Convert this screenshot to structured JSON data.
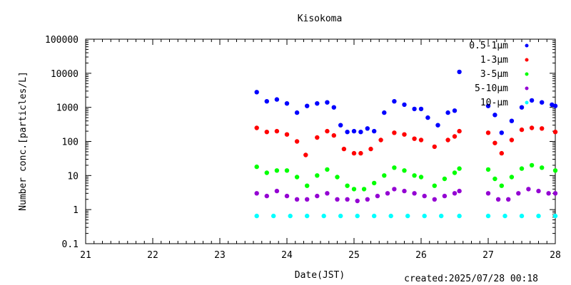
{
  "footer": {
    "created": "created:2025/07/28 00:18"
  },
  "colors": {
    "s0": "#0000ff",
    "s1": "#ff0000",
    "s2": "#00ff00",
    "s3": "#9400d3",
    "s4": "#00ffff"
  },
  "chart_data": {
    "type": "scatter",
    "title": "Kisokoma",
    "xlabel": "Date(JST)",
    "ylabel": "Number conc.[particles/L]",
    "xlim": [
      21,
      28
    ],
    "ylim": [
      0.1,
      100000
    ],
    "yscale": "log",
    "grid": false,
    "legend_position": "top-right",
    "xticks": [
      "21",
      "22",
      "23",
      "24",
      "25",
      "26",
      "27",
      "28"
    ],
    "yticks": [
      "0.1",
      "1",
      "10",
      "100",
      "1000",
      "10000",
      "100000"
    ],
    "series": [
      {
        "name": "0.5-1μm",
        "color": "#0000ff",
        "points": [
          [
            23.55,
            2800
          ],
          [
            23.7,
            1500
          ],
          [
            23.85,
            1700
          ],
          [
            24.0,
            1300
          ],
          [
            24.15,
            700
          ],
          [
            24.3,
            1100
          ],
          [
            24.45,
            1300
          ],
          [
            24.6,
            1400
          ],
          [
            24.7,
            1000
          ],
          [
            24.8,
            300
          ],
          [
            24.9,
            190
          ],
          [
            25.0,
            200
          ],
          [
            25.1,
            190
          ],
          [
            25.2,
            240
          ],
          [
            25.3,
            200
          ],
          [
            25.45,
            700
          ],
          [
            25.6,
            1500
          ],
          [
            25.75,
            1200
          ],
          [
            25.9,
            900
          ],
          [
            26.0,
            900
          ],
          [
            26.1,
            500
          ],
          [
            26.25,
            300
          ],
          [
            26.4,
            700
          ],
          [
            26.5,
            800
          ],
          [
            26.57,
            11000
          ],
          [
            27.0,
            1100
          ],
          [
            27.1,
            600
          ],
          [
            27.2,
            180
          ],
          [
            27.35,
            400
          ],
          [
            27.5,
            1000
          ],
          [
            27.65,
            1600
          ],
          [
            27.8,
            1400
          ],
          [
            27.95,
            1200
          ],
          [
            28.0,
            1100
          ]
        ]
      },
      {
        "name": "1-3μm",
        "color": "#ff0000",
        "points": [
          [
            23.55,
            250
          ],
          [
            23.7,
            190
          ],
          [
            23.85,
            200
          ],
          [
            24.0,
            160
          ],
          [
            24.15,
            100
          ],
          [
            24.28,
            40
          ],
          [
            24.45,
            130
          ],
          [
            24.6,
            200
          ],
          [
            24.7,
            150
          ],
          [
            24.85,
            60
          ],
          [
            25.0,
            45
          ],
          [
            25.1,
            45
          ],
          [
            25.25,
            60
          ],
          [
            25.4,
            110
          ],
          [
            25.6,
            180
          ],
          [
            25.75,
            160
          ],
          [
            25.9,
            120
          ],
          [
            26.0,
            110
          ],
          [
            26.2,
            70
          ],
          [
            26.4,
            110
          ],
          [
            26.5,
            140
          ],
          [
            26.57,
            200
          ],
          [
            27.0,
            180
          ],
          [
            27.1,
            90
          ],
          [
            27.2,
            45
          ],
          [
            27.35,
            110
          ],
          [
            27.5,
            220
          ],
          [
            27.65,
            250
          ],
          [
            27.8,
            240
          ],
          [
            28.0,
            190
          ]
        ]
      },
      {
        "name": "3-5μm",
        "color": "#00ff00",
        "points": [
          [
            23.55,
            18
          ],
          [
            23.7,
            12
          ],
          [
            23.85,
            14
          ],
          [
            24.0,
            14
          ],
          [
            24.15,
            9
          ],
          [
            24.3,
            5
          ],
          [
            24.45,
            10
          ],
          [
            24.6,
            15
          ],
          [
            24.75,
            9
          ],
          [
            24.9,
            5
          ],
          [
            25.0,
            4
          ],
          [
            25.15,
            4
          ],
          [
            25.3,
            6
          ],
          [
            25.45,
            10
          ],
          [
            25.6,
            17
          ],
          [
            25.75,
            14
          ],
          [
            25.9,
            10
          ],
          [
            26.0,
            9
          ],
          [
            26.2,
            5
          ],
          [
            26.35,
            8
          ],
          [
            26.5,
            12
          ],
          [
            26.57,
            16
          ],
          [
            27.0,
            15
          ],
          [
            27.1,
            8
          ],
          [
            27.2,
            5
          ],
          [
            27.35,
            9
          ],
          [
            27.5,
            16
          ],
          [
            27.65,
            20
          ],
          [
            27.8,
            17
          ],
          [
            28.0,
            14
          ]
        ]
      },
      {
        "name": "5-10μm",
        "color": "#9400d3",
        "points": [
          [
            23.55,
            3
          ],
          [
            23.7,
            2.5
          ],
          [
            23.85,
            3.5
          ],
          [
            24.0,
            2.5
          ],
          [
            24.15,
            2
          ],
          [
            24.3,
            2
          ],
          [
            24.45,
            2.5
          ],
          [
            24.6,
            3
          ],
          [
            24.75,
            2
          ],
          [
            24.9,
            2
          ],
          [
            25.05,
            1.8
          ],
          [
            25.2,
            2
          ],
          [
            25.35,
            2.5
          ],
          [
            25.5,
            3
          ],
          [
            25.6,
            4
          ],
          [
            25.75,
            3.5
          ],
          [
            25.9,
            3
          ],
          [
            26.05,
            2.5
          ],
          [
            26.2,
            2
          ],
          [
            26.35,
            2.5
          ],
          [
            26.5,
            3
          ],
          [
            26.57,
            3.5
          ],
          [
            27.0,
            3
          ],
          [
            27.15,
            2
          ],
          [
            27.3,
            2
          ],
          [
            27.45,
            3
          ],
          [
            27.6,
            4
          ],
          [
            27.75,
            3.5
          ],
          [
            27.9,
            3
          ],
          [
            28.0,
            3
          ]
        ]
      },
      {
        "name": "10-μm",
        "color": "#00ffff",
        "points": [
          [
            23.55,
            0.65
          ],
          [
            23.8,
            0.65
          ],
          [
            24.05,
            0.65
          ],
          [
            24.3,
            0.65
          ],
          [
            24.55,
            0.65
          ],
          [
            24.8,
            0.65
          ],
          [
            25.05,
            0.65
          ],
          [
            25.3,
            0.65
          ],
          [
            25.55,
            0.65
          ],
          [
            25.8,
            0.65
          ],
          [
            26.05,
            0.65
          ],
          [
            26.3,
            0.65
          ],
          [
            26.57,
            0.65
          ],
          [
            27.0,
            0.65
          ],
          [
            27.25,
            0.65
          ],
          [
            27.5,
            0.65
          ],
          [
            27.75,
            0.65
          ],
          [
            28.0,
            0.65
          ]
        ]
      }
    ]
  }
}
